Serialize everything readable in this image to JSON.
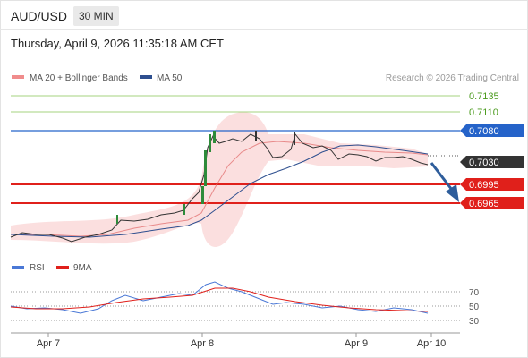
{
  "header": {
    "pair": "AUD/USD",
    "timeframe": "30 MIN",
    "datetime": "Thursday, April 9, 2026 11:35:18 AM CET"
  },
  "legend": {
    "ma20": "MA 20 + Bollinger Bands",
    "ma50": "MA 50",
    "credit": "Research © 2026 Trading Central"
  },
  "rsi_legend": {
    "rsi": "RSI",
    "ma9": "9MA"
  },
  "colors": {
    "green": "#4a9a1c",
    "blue": "#2563c9",
    "red": "#e0201b",
    "dark": "#333333",
    "arrow": "#2e5d9b",
    "ma20": "#e88a8a",
    "ma50": "#2e4f8f"
  },
  "chart_data": [
    {
      "type": "line",
      "title": "AUD/USD",
      "x_labels": [
        "Apr 7",
        "Apr 8",
        "Apr 9",
        "Apr 10"
      ],
      "levels": [
        {
          "value": 0.7135,
          "label": "0.7135",
          "kind": "resistance"
        },
        {
          "value": 0.711,
          "label": "0.7110",
          "kind": "resistance"
        },
        {
          "value": 0.708,
          "label": "0.7080",
          "kind": "pivot"
        },
        {
          "value": 0.703,
          "label": "0.7030",
          "kind": "last"
        },
        {
          "value": 0.6995,
          "label": "0.6995",
          "kind": "target"
        },
        {
          "value": 0.6965,
          "label": "0.6965",
          "kind": "target"
        }
      ],
      "series": [
        {
          "name": "MA 20 + Bollinger Bands",
          "values": [
            0.6924,
            0.6922,
            0.6921,
            0.6922,
            0.6926,
            0.6935,
            0.6955,
            0.7,
            0.705,
            0.7072,
            0.7066,
            0.7058,
            0.7052,
            0.7046,
            0.7042,
            0.7038,
            0.7035
          ]
        },
        {
          "name": "MA 50",
          "values": [
            0.6925,
            0.6924,
            0.6923,
            0.6923,
            0.6925,
            0.6928,
            0.6936,
            0.696,
            0.6992,
            0.7016,
            0.703,
            0.7046,
            0.705,
            0.705,
            0.7049,
            0.7047,
            0.7044
          ]
        }
      ],
      "close_values": [
        0.6925,
        0.6924,
        0.692,
        0.6916,
        0.692,
        0.6926,
        0.694,
        0.6955,
        0.6972,
        0.7,
        0.7065,
        0.7072,
        0.707,
        0.7068,
        0.7063,
        0.706,
        0.7055,
        0.7074,
        0.7064,
        0.706,
        0.7055,
        0.7045,
        0.7046,
        0.7044,
        0.704,
        0.704,
        0.7036,
        0.703
      ],
      "forecast_arrow": "down"
    },
    {
      "type": "line",
      "title": "",
      "levels": [
        70,
        50,
        30
      ],
      "series": [
        {
          "name": "RSI",
          "values": [
            50,
            47,
            46,
            46,
            43,
            40,
            44,
            50,
            56,
            60,
            65,
            70,
            63,
            58,
            52,
            50,
            47,
            49,
            46,
            44,
            45,
            48,
            44,
            42
          ]
        },
        {
          "name": "9MA",
          "values": [
            48,
            47,
            46,
            45,
            44,
            44,
            46,
            50,
            55,
            60,
            64,
            66,
            64,
            61,
            57,
            54,
            51,
            49,
            47,
            46,
            45,
            45,
            45,
            44
          ]
        }
      ]
    }
  ]
}
